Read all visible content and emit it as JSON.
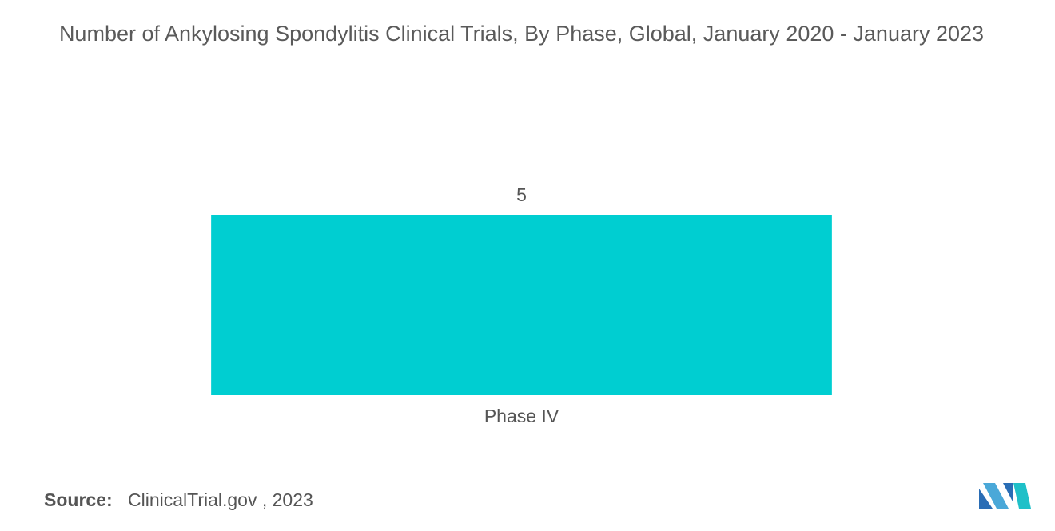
{
  "chart_data": {
    "type": "bar",
    "title": "Number of Ankylosing Spondylitis Clinical Trials, By Phase, Global, January 2020 - January 2023",
    "categories": [
      "Phase IV"
    ],
    "values": [
      5
    ],
    "color": "#00ced1",
    "source_label": "Source:",
    "source": "ClinicalTrial.gov , 2023"
  }
}
